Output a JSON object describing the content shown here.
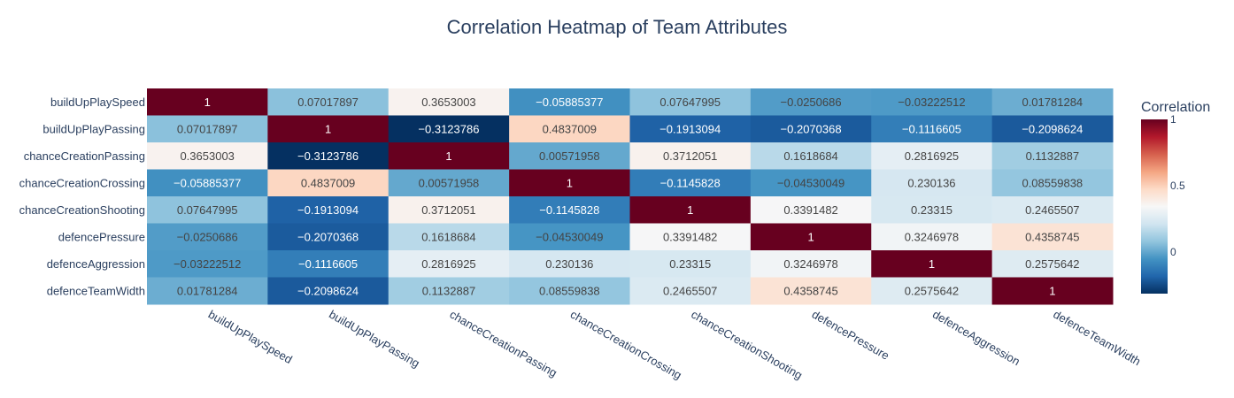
{
  "chart_data": {
    "type": "heatmap",
    "title": "Correlation Heatmap of Team Attributes",
    "rows": [
      "buildUpPlaySpeed",
      "buildUpPlayPassing",
      "chanceCreationPassing",
      "chanceCreationCrossing",
      "chanceCreationShooting",
      "defencePressure",
      "defenceAggression",
      "defenceTeamWidth"
    ],
    "columns": [
      "buildUpPlaySpeed",
      "buildUpPlayPassing",
      "chanceCreationPassing",
      "chanceCreationCrossing",
      "chanceCreationShooting",
      "defencePressure",
      "defenceAggression",
      "defenceTeamWidth"
    ],
    "values": [
      [
        1,
        0.07017897,
        0.3653003,
        -0.05885377,
        0.07647995,
        -0.0250686,
        -0.03222512,
        0.01781284
      ],
      [
        0.07017897,
        1,
        -0.3123786,
        0.4837009,
        -0.1913094,
        -0.2070368,
        -0.1116605,
        -0.2098624
      ],
      [
        0.3653003,
        -0.3123786,
        1,
        0.00571958,
        0.3712051,
        0.1618684,
        0.2816925,
        0.1132887
      ],
      [
        -0.05885377,
        0.4837009,
        0.00571958,
        1,
        -0.1145828,
        -0.04530049,
        0.230136,
        0.08559838
      ],
      [
        0.07647995,
        -0.1913094,
        0.3712051,
        -0.1145828,
        1,
        0.3391482,
        0.23315,
        0.2465507
      ],
      [
        -0.0250686,
        -0.2070368,
        0.1618684,
        -0.04530049,
        0.3391482,
        1,
        0.3246978,
        0.4358745
      ],
      [
        -0.03222512,
        -0.1116605,
        0.2816925,
        0.230136,
        0.23315,
        0.3246978,
        1,
        0.2575642
      ],
      [
        0.01781284,
        -0.2098624,
        0.1132887,
        0.08559838,
        0.2465507,
        0.4358745,
        0.2575642,
        1
      ]
    ],
    "cell_labels": [
      [
        "1",
        "0.07017897",
        "0.3653003",
        "−0.05885377",
        "0.07647995",
        "−0.0250686",
        "−0.03222512",
        "0.01781284"
      ],
      [
        "0.07017897",
        "1",
        "−0.3123786",
        "0.4837009",
        "−0.1913094",
        "−0.2070368",
        "−0.1116605",
        "−0.2098624"
      ],
      [
        "0.3653003",
        "−0.3123786",
        "1",
        "0.00571958",
        "0.3712051",
        "0.1618684",
        "0.2816925",
        "0.1132887"
      ],
      [
        "−0.05885377",
        "0.4837009",
        "0.00571958",
        "1",
        "−0.1145828",
        "−0.04530049",
        "0.230136",
        "0.08559838"
      ],
      [
        "0.07647995",
        "−0.1913094",
        "0.3712051",
        "−0.1145828",
        "1",
        "0.3391482",
        "0.23315",
        "0.2465507"
      ],
      [
        "−0.0250686",
        "−0.2070368",
        "0.1618684",
        "−0.04530049",
        "0.3391482",
        "1",
        "0.3246978",
        "0.4358745"
      ],
      [
        "−0.03222512",
        "−0.1116605",
        "0.2816925",
        "0.230136",
        "0.23315",
        "0.3246978",
        "1",
        "0.2575642"
      ],
      [
        "0.01781284",
        "−0.2098624",
        "0.1132887",
        "0.08559838",
        "0.2465507",
        "0.4358745",
        "0.2575642",
        "1"
      ]
    ],
    "colorscale": "RdBu",
    "zrange": [
      -0.3123786,
      1
    ],
    "colorbar": {
      "title": "Correlation",
      "tickvals": [
        0,
        0.5,
        1
      ],
      "ticktext": [
        "0",
        "0.5",
        "1"
      ]
    },
    "colors": {
      "text": "#2a3f5f",
      "scale_stops": [
        "#053061",
        "#2166ac",
        "#4393c3",
        "#92c5de",
        "#d1e5f0",
        "#f7f7f7",
        "#fddbc7",
        "#f4a582",
        "#d6604d",
        "#b2182b",
        "#67001f"
      ]
    }
  }
}
